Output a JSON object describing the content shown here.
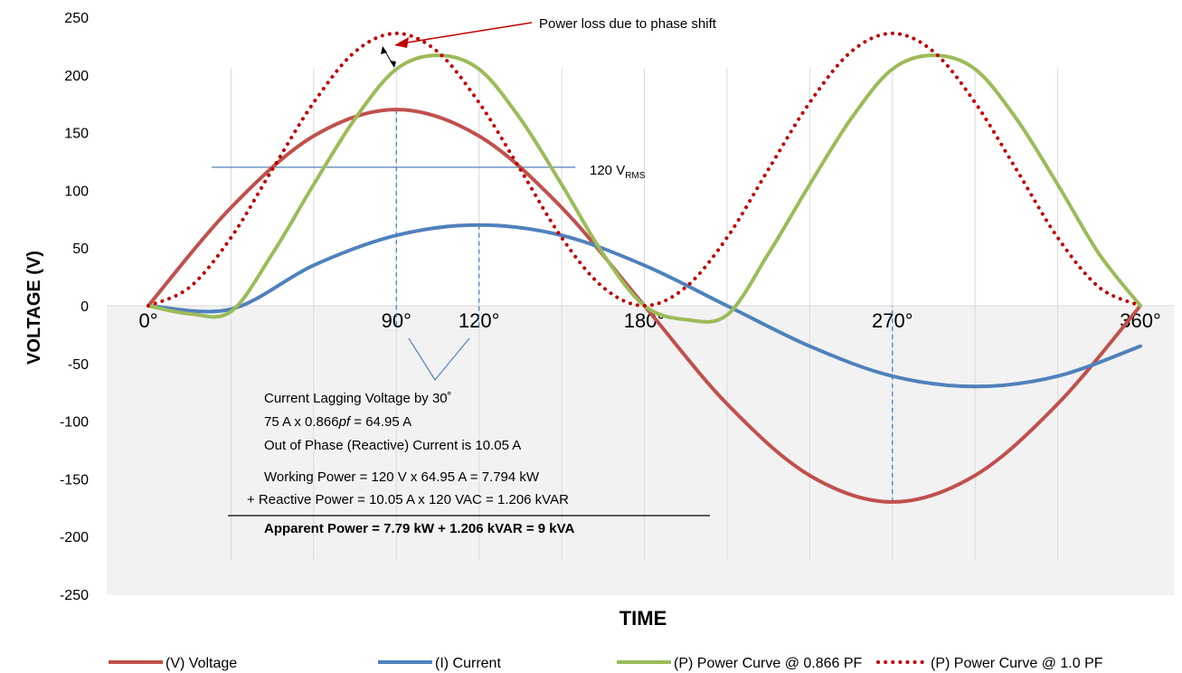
{
  "chart_data": {
    "type": "line",
    "xlabel": "TIME",
    "ylabel": "VOLTAGE (V)",
    "ylim": [
      -250,
      250
    ],
    "xlim": [
      0,
      360
    ],
    "y_ticks": [
      250,
      200,
      150,
      100,
      50,
      0,
      -50,
      -100,
      -150,
      -200,
      -250
    ],
    "x_tick_labels": [
      {
        "x": 0,
        "label": "0°"
      },
      {
        "x": 90,
        "label": "90°"
      },
      {
        "x": 120,
        "label": "120°"
      },
      {
        "x": 180,
        "label": "180°"
      },
      {
        "x": 270,
        "label": "270°"
      },
      {
        "x": 360,
        "label": "360°"
      }
    ],
    "grid": "vertical",
    "legend_position": "bottom",
    "series": [
      {
        "name": "(V) Voltage",
        "color": "#c0504d",
        "style": "solid",
        "x": [
          0,
          30,
          60,
          90,
          120,
          150,
          180,
          210,
          240,
          270,
          300,
          330,
          360
        ],
        "y": [
          0,
          85,
          147,
          170,
          147,
          85,
          0,
          -85,
          -147,
          -170,
          -147,
          -85,
          0
        ]
      },
      {
        "name": "(I) Current",
        "color": "#4f81bd",
        "style": "solid",
        "x": [
          0,
          30,
          60,
          90,
          120,
          150,
          180,
          210,
          240,
          270,
          300,
          330,
          360
        ],
        "y": [
          0,
          -3,
          35,
          61,
          70,
          61,
          35,
          0,
          -35,
          -61,
          -70,
          -61,
          -35
        ]
      },
      {
        "name": "(P) Power Curve @ 0.866 PF",
        "color": "#9bbb59",
        "style": "solid",
        "x": [
          0,
          15,
          30,
          45,
          60,
          75,
          90,
          105,
          120,
          135,
          150,
          165,
          180,
          195,
          210,
          225,
          240,
          255,
          270,
          285,
          300,
          315,
          330,
          345,
          360
        ],
        "y": [
          0,
          -7,
          -5,
          45,
          105,
          162,
          205,
          217,
          205,
          162,
          105,
          45,
          0,
          -12,
          -8,
          45,
          105,
          162,
          205,
          217,
          205,
          162,
          105,
          45,
          0
        ]
      },
      {
        "name": "(P) Power Curve @ 1.0 PF",
        "color": "#c00000",
        "style": "dotted",
        "x": [
          0,
          15,
          30,
          45,
          60,
          75,
          90,
          105,
          120,
          135,
          150,
          165,
          180,
          195,
          210,
          225,
          240,
          255,
          270,
          285,
          300,
          315,
          330,
          345,
          360
        ],
        "y": [
          0,
          16,
          59,
          118,
          176,
          220,
          236,
          220,
          176,
          118,
          59,
          16,
          0,
          16,
          59,
          118,
          176,
          220,
          236,
          220,
          176,
          118,
          59,
          16,
          0
        ]
      }
    ],
    "reference_lines": [
      {
        "y": 120,
        "x_start": 23,
        "x_end": 155,
        "label_main": "120 V",
        "label_sub": "RMS"
      }
    ],
    "annotations": {
      "power_loss": "Power loss due to phase shift",
      "lines": [
        "Current Lagging Voltage by 30˚",
        "75 A x 0.866",
        "pf",
        " = 64.95 A",
        "Out of Phase (Reactive) Current is 10.05 A",
        "Working Power = 120 V x 64.95 A = 7.794 kW",
        "+  Reactive Power = 10.05 A x 120 VAC = 1.206 kVAR",
        "Apparent Power = 7.79 kW + 1.206 kVAR = 9 kVA"
      ]
    }
  }
}
